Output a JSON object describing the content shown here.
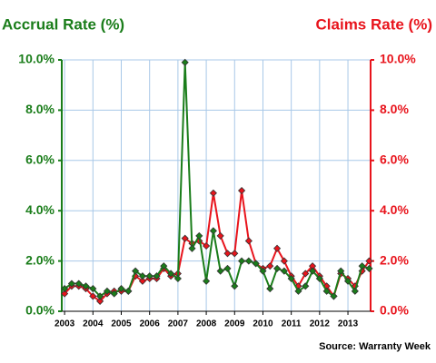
{
  "chart_data": {
    "type": "line",
    "title_left": "Accrual Rate (%)",
    "title_right": "Claims Rate (%)",
    "source": "Source: Warranty Week",
    "x": [
      2003,
      2003.25,
      2003.5,
      2003.75,
      2004,
      2004.25,
      2004.5,
      2004.75,
      2005,
      2005.25,
      2005.5,
      2005.75,
      2006,
      2006.25,
      2006.5,
      2006.75,
      2007,
      2007.25,
      2007.5,
      2007.75,
      2008,
      2008.25,
      2008.5,
      2008.75,
      2009,
      2009.25,
      2009.5,
      2009.75,
      2010,
      2010.25,
      2010.5,
      2010.75,
      2011,
      2011.25,
      2011.5,
      2011.75,
      2012,
      2012.25,
      2012.5,
      2012.75,
      2013,
      2013.25,
      2013.5,
      2013.75
    ],
    "series": [
      {
        "name": "Claims Rate",
        "color": "#e8141c",
        "axis": "y2",
        "values": [
          0.7,
          1.0,
          1.0,
          0.9,
          0.6,
          0.4,
          0.7,
          0.8,
          0.8,
          0.8,
          1.4,
          1.2,
          1.3,
          1.3,
          1.7,
          1.4,
          1.5,
          2.9,
          2.7,
          2.8,
          2.6,
          4.7,
          3.0,
          2.3,
          2.3,
          4.8,
          2.8,
          1.9,
          1.7,
          1.8,
          2.5,
          2.0,
          1.4,
          1.0,
          1.5,
          1.8,
          1.4,
          1.0,
          0.6,
          1.5,
          1.3,
          1.0,
          1.6,
          2.0
        ]
      },
      {
        "name": "Accrual Rate",
        "color": "#1a7d1a",
        "values": [
          0.9,
          1.1,
          1.1,
          1.0,
          0.9,
          0.6,
          0.8,
          0.7,
          0.9,
          0.8,
          1.6,
          1.4,
          1.4,
          1.4,
          1.8,
          1.5,
          1.3,
          9.9,
          2.5,
          3.0,
          1.2,
          3.2,
          1.6,
          1.7,
          1.0,
          2.0,
          2.0,
          1.9,
          1.6,
          0.9,
          1.7,
          1.6,
          1.3,
          0.8,
          1.0,
          1.6,
          1.3,
          0.8,
          0.6,
          1.6,
          1.2,
          0.8,
          1.8,
          1.7
        ]
      }
    ],
    "xlim": [
      2002.9,
      2013.8
    ],
    "xticks": [
      2003,
      2004,
      2005,
      2006,
      2007,
      2008,
      2009,
      2010,
      2011,
      2012,
      2013
    ],
    "ylim": [
      0,
      10
    ],
    "yticks": [
      {
        "value": 0,
        "label": "0.0%"
      },
      {
        "value": 2,
        "label": "2.0%"
      },
      {
        "value": 4,
        "label": "4.0%"
      },
      {
        "value": 6,
        "label": "6.0%"
      },
      {
        "value": 8,
        "label": "8.0%"
      },
      {
        "value": 10,
        "label": "10.0%"
      }
    ],
    "y2lim": [
      0,
      10
    ],
    "y2ticks": [
      {
        "value": 0,
        "label": "0.0%"
      },
      {
        "value": 2,
        "label": "2.0%"
      },
      {
        "value": 4,
        "label": "4.0%"
      },
      {
        "value": 6,
        "label": "6.0%"
      },
      {
        "value": 8,
        "label": "8.0%"
      },
      {
        "value": 10,
        "label": "10.0%"
      }
    ],
    "left_axis_color": "#1a7d1a",
    "right_axis_color": "#e8141c",
    "grid": true
  }
}
